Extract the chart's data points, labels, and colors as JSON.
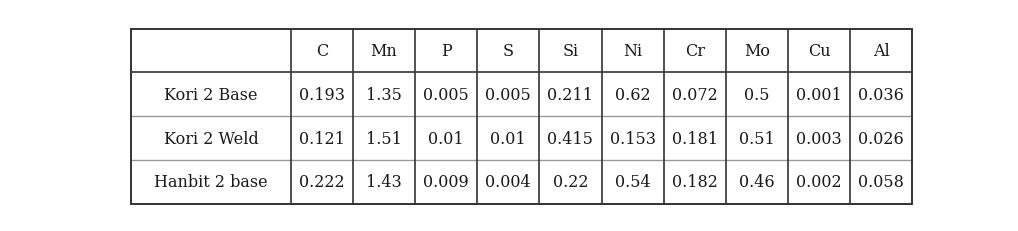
{
  "columns": [
    "",
    "C",
    "Mn",
    "P",
    "S",
    "Si",
    "Ni",
    "Cr",
    "Mo",
    "Cu",
    "Al"
  ],
  "rows": [
    [
      "Kori 2 Base",
      "0.193",
      "1.35",
      "0.005",
      "0.005",
      "0.211",
      "0.62",
      "0.072",
      "0.5",
      "0.001",
      "0.036"
    ],
    [
      "Kori 2 Weld",
      "0.121",
      "1.51",
      "0.01",
      "0.01",
      "0.415",
      "0.153",
      "0.181",
      "0.51",
      "0.003",
      "0.026"
    ],
    [
      "Hanbit 2 base",
      "0.222",
      "1.43",
      "0.009",
      "0.004",
      "0.22",
      "0.54",
      "0.182",
      "0.46",
      "0.002",
      "0.058"
    ]
  ],
  "outer_border_color": "#333333",
  "header_line_color": "#333333",
  "inner_line_color": "#999999",
  "text_color": "#1a1a1a",
  "bg_color": "#ffffff",
  "font_size": 11.5,
  "col_widths": [
    1.9,
    0.74,
    0.74,
    0.74,
    0.74,
    0.74,
    0.74,
    0.74,
    0.74,
    0.74,
    0.74
  ]
}
